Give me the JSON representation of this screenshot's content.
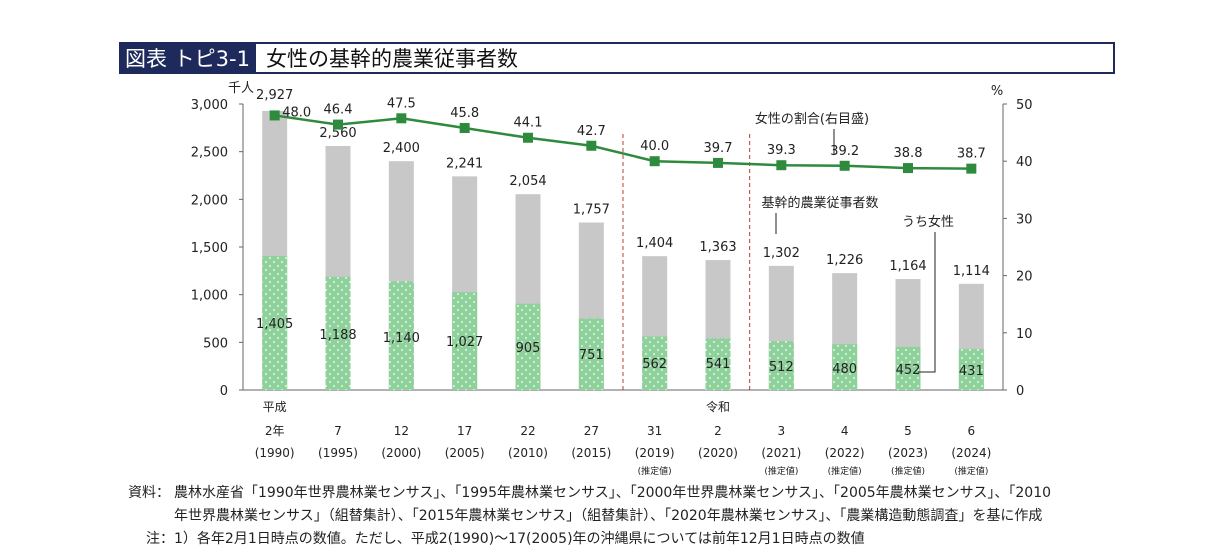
{
  "header": {
    "label": "図表 トピ3-1",
    "title": "女性の基幹的農業従事者数"
  },
  "chart_data": {
    "type": "bar",
    "bar_mode": "overlay",
    "left_axis": {
      "unit_label": "千人",
      "ticks": [
        "0",
        "500",
        "1,000",
        "1,500",
        "2,000",
        "2,500",
        "3,000"
      ],
      "range": [
        0,
        3000
      ]
    },
    "right_axis": {
      "unit_label": "%",
      "ticks": [
        "0",
        "10",
        "20",
        "30",
        "40",
        "50"
      ],
      "range": [
        0,
        50
      ]
    },
    "categories": [
      {
        "era": "平成",
        "year": "2年",
        "western": "(1990)",
        "note": ""
      },
      {
        "era": "",
        "year": "7",
        "western": "(1995)",
        "note": ""
      },
      {
        "era": "",
        "year": "12",
        "western": "(2000)",
        "note": ""
      },
      {
        "era": "",
        "year": "17",
        "western": "(2005)",
        "note": ""
      },
      {
        "era": "",
        "year": "22",
        "western": "(2010)",
        "note": ""
      },
      {
        "era": "",
        "year": "27",
        "western": "(2015)",
        "note": ""
      },
      {
        "era": "",
        "year": "31",
        "western": "(2019)",
        "note": "(推定値)"
      },
      {
        "era": "令和",
        "year": "2",
        "western": "(2020)",
        "note": ""
      },
      {
        "era": "",
        "year": "3",
        "western": "(2021)",
        "note": "(推定値)"
      },
      {
        "era": "",
        "year": "4",
        "western": "(2022)",
        "note": "(推定値)"
      },
      {
        "era": "",
        "year": "5",
        "western": "(2023)",
        "note": "(推定値)"
      },
      {
        "era": "",
        "year": "6",
        "western": "(2024)",
        "note": "(推定値)"
      }
    ],
    "series": [
      {
        "name": "基幹的農業従事者数",
        "axis": "left",
        "color": "#c8c8c8",
        "values": [
          2927,
          2560,
          2400,
          2241,
          2054,
          1757,
          1404,
          1363,
          1302,
          1226,
          1164,
          1114
        ],
        "labels": [
          "2,927",
          "2,560",
          "2,400",
          "2,241",
          "2,054",
          "1,757",
          "1,404",
          "1,363",
          "1,302",
          "1,226",
          "1,164",
          "1,114"
        ]
      },
      {
        "name": "うち女性",
        "axis": "left",
        "color": "#8fd19b",
        "values": [
          1405,
          1188,
          1140,
          1027,
          905,
          751,
          562,
          541,
          512,
          480,
          452,
          431
        ],
        "labels": [
          "1,405",
          "1,188",
          "1,140",
          "1,027",
          "905",
          "751",
          "562",
          "541",
          "512",
          "480",
          "452",
          "431"
        ]
      },
      {
        "name": "女性の割合(右目盛)",
        "axis": "right",
        "type": "line",
        "color": "#2e8b3e",
        "values": [
          48.0,
          46.4,
          47.5,
          45.8,
          44.1,
          42.7,
          40.0,
          39.7,
          39.3,
          39.2,
          38.8,
          38.7
        ],
        "labels": [
          "48.0",
          "46.4",
          "47.5",
          "45.8",
          "44.1",
          "42.7",
          "40.0",
          "39.7",
          "39.3",
          "39.2",
          "38.8",
          "38.7"
        ]
      }
    ],
    "dashed_separators_after_index": [
      5,
      7
    ]
  },
  "notes": {
    "source_key": "資料：",
    "source_line1": "農林水産省「1990年世界農林業センサス」、「1995年農林業センサス」、「2000年世界農林業センサス」、「2005年農林業センサス」、「2010",
    "source_line2": "年世界農林業センサス」（組替集計）、「2015年農林業センサス」（組替集計）、「2020年農林業センサス」、「農業構造動態調査」を基に作成",
    "note_key": "注：",
    "note_line1": "1）各年2月1日時点の数値。ただし、平成2(1990)～17(2005)年の沖縄県については前年12月1日時点の数値"
  }
}
